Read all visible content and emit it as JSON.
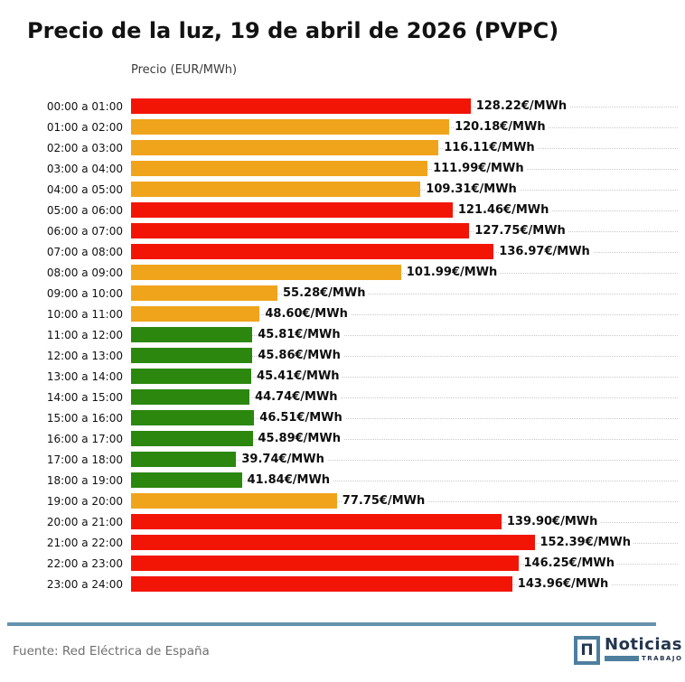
{
  "title": "Precio de la luz, 19 de abril de 2026 (PVPC)",
  "chart_data": {
    "type": "bar",
    "orientation": "horizontal",
    "title": "Precio de la luz, 19 de abril de 2026 (PVPC)",
    "xlabel": "Precio (EUR/MWh)",
    "ylabel": "",
    "grid": "dotted horizontal line per category row",
    "legend": "none",
    "xlim": [
      0,
      207
    ],
    "categories": [
      "00:00 a 01:00",
      "01:00 a 02:00",
      "02:00 a 03:00",
      "03:00 a 04:00",
      "04:00 a 05:00",
      "05:00 a 06:00",
      "06:00 a 07:00",
      "07:00 a 08:00",
      "08:00 a 09:00",
      "09:00 a 10:00",
      "10:00 a 11:00",
      "11:00 a 12:00",
      "12:00 a 13:00",
      "13:00 a 14:00",
      "14:00 a 15:00",
      "15:00 a 16:00",
      "16:00 a 17:00",
      "17:00 a 18:00",
      "18:00 a 19:00",
      "19:00 a 20:00",
      "20:00 a 21:00",
      "21:00 a 22:00",
      "22:00 a 23:00",
      "23:00 a 24:00"
    ],
    "values": [
      128.22,
      120.18,
      116.11,
      111.99,
      109.31,
      121.46,
      127.75,
      136.97,
      101.99,
      55.28,
      48.6,
      45.81,
      45.86,
      45.41,
      44.74,
      46.51,
      45.89,
      39.74,
      41.84,
      77.75,
      139.9,
      152.39,
      146.25,
      143.96
    ],
    "value_labels": [
      "128.22€/MWh",
      "120.18€/MWh",
      "116.11€/MWh",
      "111.99€/MWh",
      "109.31€/MWh",
      "121.46€/MWh",
      "127.75€/MWh",
      "136.97€/MWh",
      "101.99€/MWh",
      "55.28€/MWh",
      "48.60€/MWh",
      "45.81€/MWh",
      "45.86€/MWh",
      "45.41€/MWh",
      "44.74€/MWh",
      "46.51€/MWh",
      "45.89€/MWh",
      "39.74€/MWh",
      "41.84€/MWh",
      "77.75€/MWh",
      "139.90€/MWh",
      "152.39€/MWh",
      "146.25€/MWh",
      "143.96€/MWh"
    ],
    "bar_colors": [
      "red",
      "orange",
      "orange",
      "orange",
      "orange",
      "red",
      "red",
      "red",
      "orange",
      "orange",
      "orange",
      "green",
      "green",
      "green",
      "green",
      "green",
      "green",
      "green",
      "green",
      "orange",
      "red",
      "red",
      "red",
      "red"
    ],
    "palette": {
      "red": "#f21505",
      "orange": "#f0a41c",
      "green": "#2b870e"
    }
  },
  "footer": {
    "source": "Fuente: Red Eléctrica de España",
    "divider_color": "#6592ad",
    "logo": {
      "icon_glyph": "Π",
      "title": "Noticias",
      "subtitle": "TRABAJO",
      "navy": "#24354f",
      "steel_blue": "#4e7f9f"
    }
  }
}
